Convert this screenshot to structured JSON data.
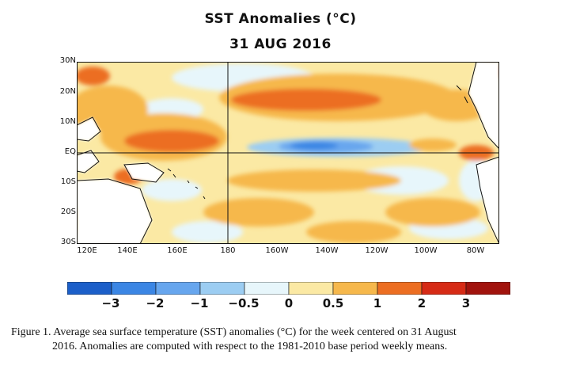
{
  "title": "SST Anomalies (°C)",
  "subtitle": "31 AUG 2016",
  "map": {
    "lat_labels": [
      "30N",
      "20N",
      "10N",
      "EQ",
      "10S",
      "20S",
      "30S"
    ],
    "lat_values": [
      30,
      20,
      10,
      0,
      -10,
      -20,
      -30
    ],
    "lon_labels": [
      "120E",
      "140E",
      "160E",
      "180",
      "160W",
      "140W",
      "120W",
      "100W",
      "80W"
    ],
    "lon_values": [
      120,
      140,
      160,
      180,
      200,
      220,
      240,
      260,
      280
    ],
    "lon_range": [
      120,
      290
    ],
    "lat_range": [
      -30,
      30
    ],
    "reference_lines": [
      "equator",
      "180 meridian"
    ]
  },
  "colorbar": {
    "colors": [
      "#1c5fc9",
      "#3b86e4",
      "#67a6ee",
      "#9ccdf2",
      "#e7f6fb",
      "#fbe9a4",
      "#f6b84c",
      "#ec6e22",
      "#d62b16",
      "#a1130d"
    ],
    "tick_labels": [
      "−3",
      "−2",
      "−1",
      "−0.5",
      "0",
      "0.5",
      "1",
      "2",
      "3"
    ],
    "tick_values": [
      -3,
      -2,
      -1,
      -0.5,
      0,
      0.5,
      1,
      2,
      3
    ]
  },
  "caption": {
    "line1": "Figure 1. Average sea surface temperature (SST) anomalies (°C) for the week centered on 31 August",
    "line2": "2016.  Anomalies are computed with respect to the 1981-2010 base period weekly means."
  }
}
